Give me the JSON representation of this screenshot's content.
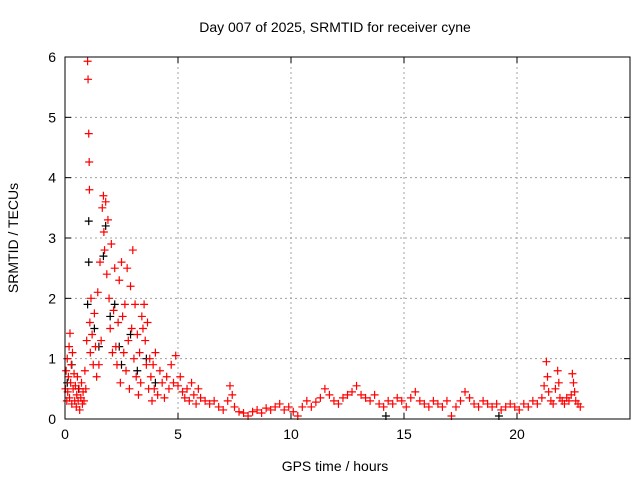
{
  "chart_data": {
    "type": "scatter",
    "title": "Day 007 of 2025, SRMTID for receiver cyne",
    "xlabel": "GPS time / hours",
    "ylabel": "SRMTID / TECUs",
    "xlim": [
      0,
      25
    ],
    "ylim": [
      0,
      6
    ],
    "xticks": [
      0,
      5,
      10,
      15,
      20
    ],
    "yticks": [
      0,
      1,
      2,
      3,
      4,
      5,
      6
    ],
    "grid": true,
    "marker": "plus",
    "series": [
      {
        "name": "black",
        "color": "#000000",
        "points": [
          [
            0.1,
            0.6
          ],
          [
            0.3,
            0.9
          ],
          [
            0.6,
            0.5
          ],
          [
            1.0,
            1.9
          ],
          [
            1.05,
            3.28
          ],
          [
            1.05,
            2.6
          ],
          [
            1.3,
            1.5
          ],
          [
            1.5,
            1.2
          ],
          [
            1.7,
            2.7
          ],
          [
            1.8,
            3.2
          ],
          [
            2.0,
            1.7
          ],
          [
            2.2,
            1.9
          ],
          [
            2.4,
            1.2
          ],
          [
            2.5,
            0.9
          ],
          [
            2.9,
            1.4
          ],
          [
            3.2,
            0.8
          ],
          [
            3.6,
            1.0
          ],
          [
            4.0,
            0.6
          ],
          [
            14.2,
            0.05
          ],
          [
            19.2,
            0.05
          ]
        ]
      },
      {
        "name": "red",
        "color": "#ff0000",
        "points": [
          [
            0.02,
            0.5
          ],
          [
            0.05,
            0.8
          ],
          [
            0.08,
            0.3
          ],
          [
            0.1,
            1.0
          ],
          [
            0.12,
            0.45
          ],
          [
            0.15,
            0.7
          ],
          [
            0.18,
            1.2
          ],
          [
            0.2,
            0.35
          ],
          [
            0.22,
            1.42
          ],
          [
            0.25,
            0.6
          ],
          [
            0.28,
            0.9
          ],
          [
            0.3,
            0.25
          ],
          [
            0.33,
            1.1
          ],
          [
            0.36,
            0.5
          ],
          [
            0.4,
            0.75
          ],
          [
            0.43,
            0.3
          ],
          [
            0.46,
            0.55
          ],
          [
            0.5,
            0.2
          ],
          [
            0.52,
            0.4
          ],
          [
            0.55,
            0.7
          ],
          [
            0.58,
            0.3
          ],
          [
            0.62,
            0.5
          ],
          [
            0.65,
            0.15
          ],
          [
            0.7,
            0.35
          ],
          [
            0.73,
            0.6
          ],
          [
            0.77,
            0.25
          ],
          [
            0.8,
            0.45
          ],
          [
            0.84,
            0.3
          ],
          [
            0.88,
            0.8
          ],
          [
            0.92,
            0.5
          ],
          [
            0.96,
            1.3
          ],
          [
            1.0,
            5.93
          ],
          [
            1.02,
            5.63
          ],
          [
            1.05,
            4.73
          ],
          [
            1.07,
            4.26
          ],
          [
            1.08,
            3.8
          ],
          [
            1.1,
            1.6
          ],
          [
            1.12,
            1.1
          ],
          [
            1.15,
            2.0
          ],
          [
            1.2,
            1.4
          ],
          [
            1.25,
            0.9
          ],
          [
            1.3,
            1.75
          ],
          [
            1.35,
            1.2
          ],
          [
            1.4,
            0.7
          ],
          [
            1.45,
            2.1
          ],
          [
            1.5,
            0.9
          ],
          [
            1.55,
            2.6
          ],
          [
            1.6,
            1.3
          ],
          [
            1.65,
            3.5
          ],
          [
            1.7,
            3.7
          ],
          [
            1.72,
            3.1
          ],
          [
            1.75,
            2.8
          ],
          [
            1.8,
            3.6
          ],
          [
            1.85,
            2.4
          ],
          [
            1.9,
            3.3
          ],
          [
            1.95,
            2.0
          ],
          [
            2.0,
            1.5
          ],
          [
            2.05,
            2.9
          ],
          [
            2.1,
            1.1
          ],
          [
            2.15,
            1.8
          ],
          [
            2.2,
            2.5
          ],
          [
            2.25,
            1.2
          ],
          [
            2.3,
            0.9
          ],
          [
            2.35,
            1.6
          ],
          [
            2.4,
            2.3
          ],
          [
            2.45,
            0.6
          ],
          [
            2.5,
            2.6
          ],
          [
            2.55,
            1.7
          ],
          [
            2.6,
            1.1
          ],
          [
            2.65,
            1.9
          ],
          [
            2.7,
            0.8
          ],
          [
            2.75,
            2.5
          ],
          [
            2.8,
            1.3
          ],
          [
            2.85,
            0.5
          ],
          [
            2.9,
            2.2
          ],
          [
            2.95,
            1.5
          ],
          [
            3.0,
            2.8
          ],
          [
            3.05,
            1.0
          ],
          [
            3.1,
            1.9
          ],
          [
            3.15,
            0.7
          ],
          [
            3.2,
            1.4
          ],
          [
            3.25,
            0.4
          ],
          [
            3.3,
            1.1
          ],
          [
            3.35,
            0.6
          ],
          [
            3.4,
            1.7
          ],
          [
            3.45,
            1.5
          ],
          [
            3.5,
            1.9
          ],
          [
            3.55,
            1.3
          ],
          [
            3.6,
            0.9
          ],
          [
            3.65,
            1.6
          ],
          [
            3.7,
            0.5
          ],
          [
            3.75,
            1.0
          ],
          [
            3.8,
            0.7
          ],
          [
            3.85,
            0.3
          ],
          [
            3.9,
            0.9
          ],
          [
            3.95,
            0.5
          ],
          [
            4.0,
            1.1
          ],
          [
            4.1,
            0.4
          ],
          [
            4.2,
            0.8
          ],
          [
            4.3,
            0.6
          ],
          [
            4.4,
            0.35
          ],
          [
            4.5,
            0.7
          ],
          [
            4.6,
            0.5
          ],
          [
            4.7,
            0.9
          ],
          [
            4.8,
            0.6
          ],
          [
            4.9,
            1.05
          ],
          [
            5.0,
            0.55
          ],
          [
            5.1,
            0.7
          ],
          [
            5.2,
            0.45
          ],
          [
            5.3,
            0.35
          ],
          [
            5.4,
            0.5
          ],
          [
            5.5,
            0.3
          ],
          [
            5.6,
            0.6
          ],
          [
            5.7,
            0.4
          ],
          [
            5.8,
            0.25
          ],
          [
            5.9,
            0.5
          ],
          [
            6.0,
            0.35
          ],
          [
            6.2,
            0.3
          ],
          [
            6.4,
            0.25
          ],
          [
            6.6,
            0.3
          ],
          [
            6.8,
            0.2
          ],
          [
            7.0,
            0.15
          ],
          [
            7.2,
            0.3
          ],
          [
            7.3,
            0.55
          ],
          [
            7.4,
            0.4
          ],
          [
            7.5,
            0.2
          ],
          [
            7.7,
            0.12
          ],
          [
            7.9,
            0.1
          ],
          [
            8.1,
            0.05
          ],
          [
            8.3,
            0.12
          ],
          [
            8.5,
            0.15
          ],
          [
            8.7,
            0.1
          ],
          [
            8.9,
            0.18
          ],
          [
            9.1,
            0.15
          ],
          [
            9.3,
            0.2
          ],
          [
            9.5,
            0.25
          ],
          [
            9.7,
            0.15
          ],
          [
            9.9,
            0.2
          ],
          [
            10.1,
            0.12
          ],
          [
            10.3,
            0.05
          ],
          [
            10.5,
            0.2
          ],
          [
            10.7,
            0.3
          ],
          [
            10.9,
            0.2
          ],
          [
            11.1,
            0.28
          ],
          [
            11.3,
            0.35
          ],
          [
            11.5,
            0.5
          ],
          [
            11.7,
            0.4
          ],
          [
            11.9,
            0.3
          ],
          [
            12.1,
            0.25
          ],
          [
            12.3,
            0.35
          ],
          [
            12.5,
            0.4
          ],
          [
            12.7,
            0.45
          ],
          [
            12.9,
            0.55
          ],
          [
            13.1,
            0.4
          ],
          [
            13.3,
            0.35
          ],
          [
            13.5,
            0.3
          ],
          [
            13.7,
            0.4
          ],
          [
            13.9,
            0.25
          ],
          [
            14.1,
            0.2
          ],
          [
            14.3,
            0.3
          ],
          [
            14.5,
            0.25
          ],
          [
            14.7,
            0.35
          ],
          [
            14.9,
            0.3
          ],
          [
            15.1,
            0.2
          ],
          [
            15.3,
            0.35
          ],
          [
            15.5,
            0.45
          ],
          [
            15.7,
            0.3
          ],
          [
            15.9,
            0.25
          ],
          [
            16.1,
            0.2
          ],
          [
            16.3,
            0.3
          ],
          [
            16.5,
            0.25
          ],
          [
            16.7,
            0.2
          ],
          [
            16.9,
            0.3
          ],
          [
            17.1,
            0.05
          ],
          [
            17.3,
            0.2
          ],
          [
            17.5,
            0.3
          ],
          [
            17.7,
            0.45
          ],
          [
            17.9,
            0.35
          ],
          [
            18.1,
            0.25
          ],
          [
            18.3,
            0.2
          ],
          [
            18.5,
            0.3
          ],
          [
            18.7,
            0.25
          ],
          [
            18.9,
            0.2
          ],
          [
            19.1,
            0.25
          ],
          [
            19.3,
            0.15
          ],
          [
            19.5,
            0.2
          ],
          [
            19.7,
            0.25
          ],
          [
            19.9,
            0.2
          ],
          [
            20.1,
            0.15
          ],
          [
            20.3,
            0.25
          ],
          [
            20.5,
            0.2
          ],
          [
            20.7,
            0.3
          ],
          [
            20.9,
            0.25
          ],
          [
            21.1,
            0.35
          ],
          [
            21.2,
            0.55
          ],
          [
            21.3,
            0.95
          ],
          [
            21.35,
            0.7
          ],
          [
            21.4,
            0.45
          ],
          [
            21.5,
            0.3
          ],
          [
            21.6,
            0.25
          ],
          [
            21.7,
            0.5
          ],
          [
            21.8,
            0.8
          ],
          [
            21.85,
            0.6
          ],
          [
            21.9,
            0.35
          ],
          [
            22.0,
            0.3
          ],
          [
            22.1,
            0.25
          ],
          [
            22.2,
            0.35
          ],
          [
            22.3,
            0.3
          ],
          [
            22.4,
            0.4
          ],
          [
            22.45,
            0.75
          ],
          [
            22.5,
            0.6
          ],
          [
            22.55,
            0.45
          ],
          [
            22.6,
            0.3
          ],
          [
            22.7,
            0.25
          ],
          [
            22.8,
            0.2
          ]
        ]
      }
    ]
  }
}
